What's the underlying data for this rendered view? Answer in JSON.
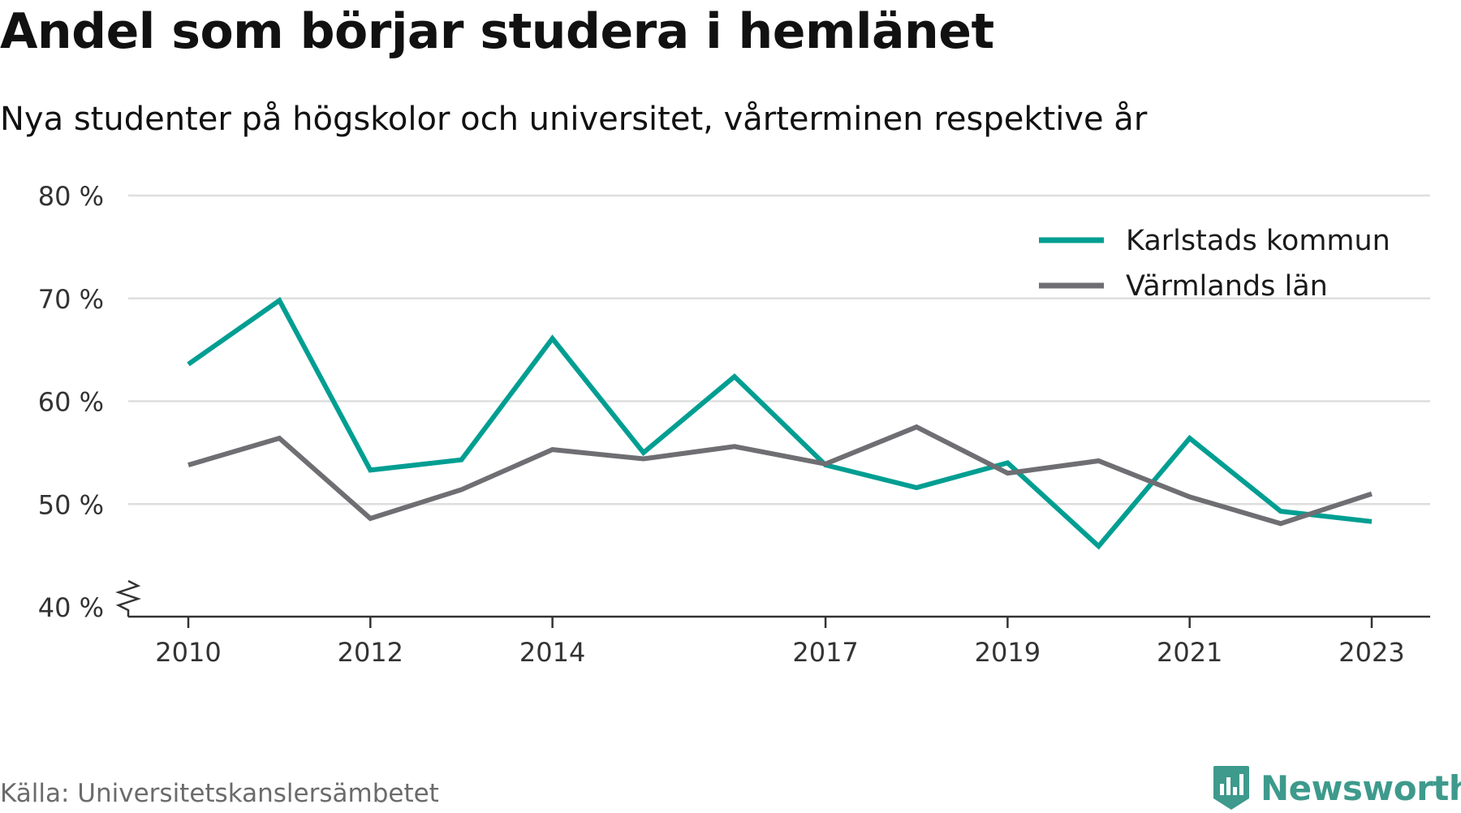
{
  "title": "Andel som börjar studera i hemlänet",
  "subtitle": "Nya studenter på högskolor och universitet, vårterminen respektive år",
  "source": "Källa: Universitetskanslersämbetet",
  "brand": {
    "name": "Newsworthy",
    "icon": "newsworthy-logo-icon"
  },
  "colors": {
    "karlstad": "#009e92",
    "varmland": "#6e6e73",
    "grid": "#dedede",
    "axis": "#333333"
  },
  "chart_data": {
    "type": "line",
    "x": [
      2010,
      2011,
      2012,
      2013,
      2014,
      2015,
      2016,
      2017,
      2018,
      2019,
      2020,
      2021,
      2022,
      2023
    ],
    "x_tick_labels": [
      "2010",
      "2012",
      "2014",
      "2017",
      "2019",
      "2021",
      "2023"
    ],
    "y_tick_values": [
      40,
      50,
      60,
      70,
      80
    ],
    "y_tick_labels": [
      "40 %",
      "50 %",
      "60 %",
      "70 %",
      "80 %"
    ],
    "ylim": [
      40,
      80
    ],
    "y_axis_break": true,
    "grid": true,
    "legend_position": "top-right",
    "series": [
      {
        "name": "Karlstads kommun",
        "color": "#009e92",
        "values": [
          63.6,
          69.8,
          53.3,
          54.3,
          66.1,
          55.0,
          62.4,
          53.8,
          51.6,
          54.0,
          45.9,
          56.4,
          49.3,
          48.3
        ]
      },
      {
        "name": "Värmlands län",
        "color": "#6e6e73",
        "values": [
          53.8,
          56.4,
          48.6,
          51.4,
          55.3,
          54.4,
          55.6,
          53.9,
          57.5,
          53.0,
          54.2,
          50.7,
          48.1,
          51.0
        ]
      }
    ]
  }
}
